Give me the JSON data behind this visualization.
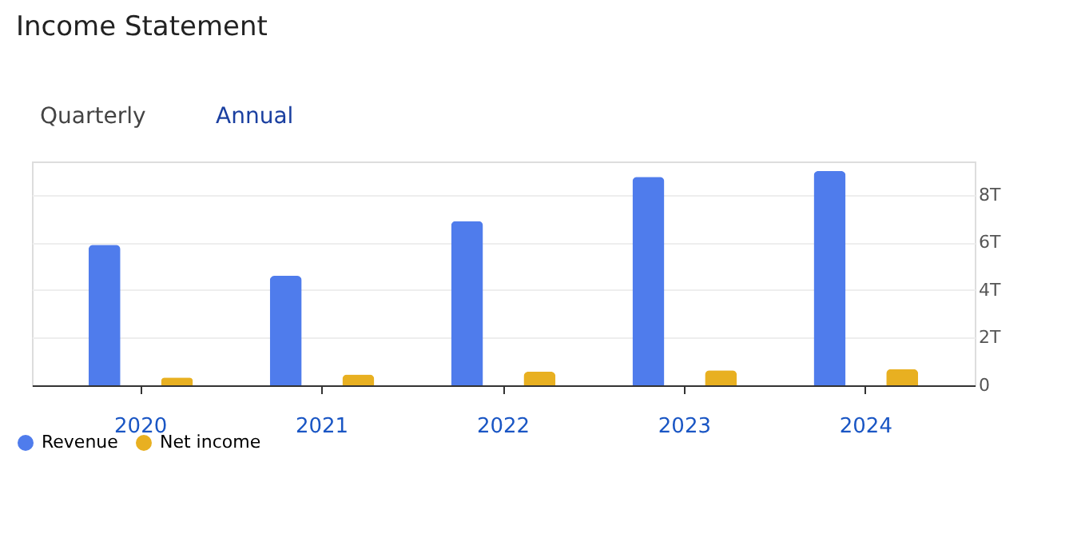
{
  "chart_data": {
    "type": "bar",
    "title": "Income Statement",
    "annotations": [
      "Quarterly",
      "Annual"
    ],
    "categories": [
      "2020",
      "2021",
      "2022",
      "2023",
      "2024"
    ],
    "series": [
      {
        "name": "Revenue",
        "color": "#4f7cec",
        "values": [
          5.9,
          4.6,
          6.9,
          8.75,
          9.0
        ]
      },
      {
        "name": "Net income",
        "color": "#e8b021",
        "values": [
          0.33,
          0.45,
          0.57,
          0.63,
          0.68
        ]
      }
    ],
    "ylim": [
      0,
      9.4
    ],
    "yticks": [
      0,
      {
        "value": 2,
        "label": "2T"
      },
      {
        "value": 4,
        "label": "4T"
      },
      {
        "value": 6,
        "label": "6T"
      },
      {
        "value": 8,
        "label": "8T"
      }
    ],
    "grid": "y",
    "legend": "bottom left"
  }
}
